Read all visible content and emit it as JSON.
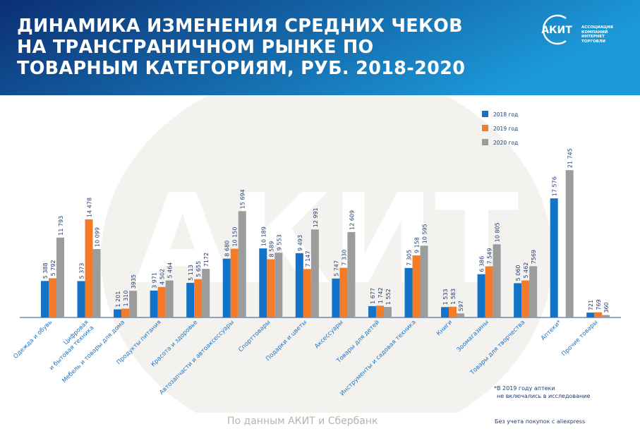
{
  "title": "ДИНАМИКА ИЗМЕНЕНИЯ СРЕДНИХ ЧЕКОВ НА ТРАНСГРАНИЧНОМ РЫНКЕ ПО ТОВАРНЫМ КАТЕГОРИЯМ, РУБ. 2018-2020",
  "logo": {
    "name": "АКИТ",
    "tagline_lines": [
      "АССОЦИАЦИЯ",
      "КОМПАНИЙ",
      "ИНТЕРНЕТ",
      "ТОРГОВЛИ"
    ]
  },
  "watermark": "АКИТ",
  "colors": {
    "header_dark": "#0c2f74",
    "header_light": "#1c9ad9",
    "series_2018": "#1273c8",
    "series_2019": "#f47b27",
    "series_2020": "#9c9c9c",
    "label_text": "#1f3b76",
    "category_text": "#1a73c2"
  },
  "chart_data": {
    "type": "bar",
    "title": "ДИНАМИКА ИЗМЕНЕНИЯ СРЕДНИХ ЧЕКОВ НА ТРАНСГРАНИЧНОМ РЫНКЕ ПО ТОВАРНЫМ КАТЕГОРИЯМ, РУБ. 2018-2020",
    "xlabel": "",
    "ylabel": "",
    "ylim": [
      0,
      22500
    ],
    "grid": false,
    "legend_position": "top-right",
    "categories": [
      "Одежда и обувь",
      "Цифровая и бытовая техника",
      "Мебель и товары для дома",
      "Продукты питания",
      "Красота и здоровье",
      "Автозапчасти и автоаксессуары",
      "Спорттовары",
      "Подарки и цветы",
      "Аксессуары",
      "Товары для детей",
      "Инструменты и садовая техника",
      "Книги",
      "Зоомагазины",
      "Товары для творчества",
      "Аптеки*",
      "Прочие товары"
    ],
    "category_label_lines": [
      [
        "Одежда и обувь"
      ],
      [
        "Цифровая",
        "и бытовая техника"
      ],
      [
        "Мебель и товары для дома"
      ],
      [
        "Продукты питания"
      ],
      [
        "Красота и здоровье"
      ],
      [
        "Автозапчасти и автоаксессуары"
      ],
      [
        "Спорттовары"
      ],
      [
        "Подарки и цветы"
      ],
      [
        "Аксессуары"
      ],
      [
        "Товары для детей"
      ],
      [
        "Инструменты и садовая техника"
      ],
      [
        "Книги"
      ],
      [
        "Зоомагазины"
      ],
      [
        "Товары для творчества"
      ],
      [
        "Аптеки*"
      ],
      [
        "Прочие товары"
      ]
    ],
    "series": [
      {
        "name": "2018 год",
        "color": "#1273c8",
        "values": [
          5388,
          5373,
          1201,
          3971,
          5113,
          8680,
          10189,
          9493,
          5747,
          1677,
          7305,
          1533,
          6386,
          5060,
          17576,
          721
        ],
        "labels": [
          "5 388",
          "5 373",
          "1 201",
          "3 971",
          "5 113",
          "8 680",
          "10 189",
          "9 493",
          "5 747",
          "1 677",
          "7 305",
          "1 533",
          "6 386",
          "5 060",
          "17 576",
          "721"
        ]
      },
      {
        "name": "2019 год",
        "color": "#f47b27",
        "values": [
          5792,
          14478,
          1310,
          4502,
          5655,
          10150,
          8589,
          7147,
          7330,
          1742,
          9158,
          1583,
          7549,
          5462,
          null,
          769
        ],
        "labels": [
          "5 792",
          "14 478",
          "1 310",
          "4 502",
          "5 655",
          "10 150",
          "8 589",
          "7 147",
          "7 330",
          "1 742",
          "9 158",
          "1 583",
          "7 549",
          "5 462",
          "",
          "769"
        ]
      },
      {
        "name": "2020 год",
        "color": "#9c9c9c",
        "values": [
          11793,
          10099,
          3935,
          5464,
          7172,
          15694,
          9553,
          12991,
          12609,
          1552,
          10595,
          597,
          10805,
          7569,
          21745,
          360
        ],
        "labels": [
          "11 793",
          "10 099",
          "3935",
          "5 464",
          "7172",
          "15 694",
          "9 553",
          "12 991",
          "12 609",
          "1 552",
          "10 595",
          "597",
          "10 805",
          "7569",
          "21 745",
          "360"
        ]
      }
    ]
  },
  "footnote_pharmacy": [
    "*В 2019 году аптеки",
    "не включались в исследование"
  ],
  "footnote_aliexpress": "Без учета покупок с aliexpress",
  "source": "По данным АКИТ и Сбербанк"
}
